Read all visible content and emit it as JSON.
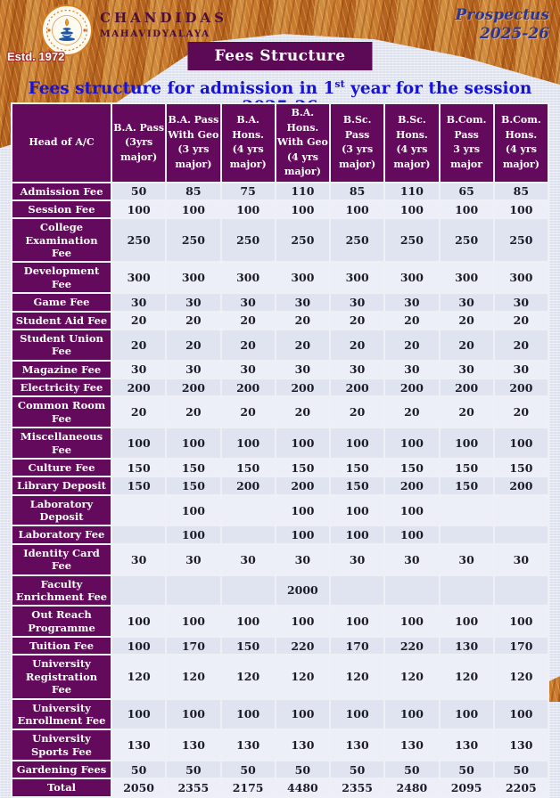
{
  "header": {
    "college_name": "CHANDIDAS",
    "college_subname": "MAHAVIDYALAYA",
    "estd": "Estd. 1972",
    "prospectus_line1": "Prospectus",
    "prospectus_line2": "2025-26",
    "banner_title": "Fees Structure",
    "page_title_prefix": "Fees structure for admission in 1",
    "page_title_sup": "st",
    "page_title_suffix": " year for the session 2025-26"
  },
  "colors": {
    "purple": "#640a5c",
    "title_blue": "#1713d4",
    "prospectus_navy": "#2a3694",
    "maroon": "#4c1038",
    "row_dark": "#dfe4f0",
    "row_light": "#eceff7",
    "orange_texture": "#c2742a"
  },
  "icons": {
    "logo": "college-emblem-lamp"
  },
  "table": {
    "head_col": "Head of A/C",
    "columns": [
      "B.A. Pass\n(3yrs major)",
      "B.A. Pass\nWith Geo\n(3 yrs major)",
      "B.A. Hons.\n(4 yrs major)",
      "B.A. Hons.\nWith Geo\n(4 yrs major)",
      "B.Sc. Pass\n(3 yrs major)",
      "B.Sc. Hons.\n(4 yrs major)",
      "B.Com. Pass\n3 yrs major",
      "B.Com. Hons.\n(4 yrs major)"
    ],
    "rows": [
      {
        "label": "Admission Fee",
        "values": [
          "50",
          "85",
          "75",
          "110",
          "85",
          "110",
          "65",
          "85"
        ]
      },
      {
        "label": "Session Fee",
        "values": [
          "100",
          "100",
          "100",
          "100",
          "100",
          "100",
          "100",
          "100"
        ]
      },
      {
        "label": "College Examination Fee",
        "values": [
          "250",
          "250",
          "250",
          "250",
          "250",
          "250",
          "250",
          "250"
        ]
      },
      {
        "label": "Development Fee",
        "values": [
          "300",
          "300",
          "300",
          "300",
          "300",
          "300",
          "300",
          "300"
        ]
      },
      {
        "label": "Game Fee",
        "values": [
          "30",
          "30",
          "30",
          "30",
          "30",
          "30",
          "30",
          "30"
        ]
      },
      {
        "label": "Student Aid Fee",
        "values": [
          "20",
          "20",
          "20",
          "20",
          "20",
          "20",
          "20",
          "20"
        ]
      },
      {
        "label": "Student Union Fee",
        "values": [
          "20",
          "20",
          "20",
          "20",
          "20",
          "20",
          "20",
          "20"
        ]
      },
      {
        "label": "Magazine Fee",
        "values": [
          "30",
          "30",
          "30",
          "30",
          "30",
          "30",
          "30",
          "30"
        ]
      },
      {
        "label": "Electricity Fee",
        "values": [
          "200",
          "200",
          "200",
          "200",
          "200",
          "200",
          "200",
          "200"
        ]
      },
      {
        "label": "Common Room Fee",
        "values": [
          "20",
          "20",
          "20",
          "20",
          "20",
          "20",
          "20",
          "20"
        ]
      },
      {
        "label": "Miscellaneous Fee",
        "values": [
          "100",
          "100",
          "100",
          "100",
          "100",
          "100",
          "100",
          "100"
        ]
      },
      {
        "label": "Culture Fee",
        "values": [
          "150",
          "150",
          "150",
          "150",
          "150",
          "150",
          "150",
          "150"
        ]
      },
      {
        "label": "Library Deposit",
        "values": [
          "150",
          "150",
          "200",
          "200",
          "150",
          "200",
          "150",
          "200"
        ]
      },
      {
        "label": "Laboratory Deposit",
        "values": [
          "",
          "100",
          "",
          "100",
          "100",
          "100",
          "",
          ""
        ]
      },
      {
        "label": "Laboratory Fee",
        "values": [
          "",
          "100",
          "",
          "100",
          "100",
          "100",
          "",
          ""
        ]
      },
      {
        "label": "Identity Card Fee",
        "values": [
          "30",
          "30",
          "30",
          "30",
          "30",
          "30",
          "30",
          "30"
        ]
      },
      {
        "label": "Faculty Enrichment Fee",
        "values": [
          "",
          "",
          "",
          "2000",
          "",
          "",
          "",
          ""
        ]
      },
      {
        "label": "Out Reach Programme",
        "values": [
          "100",
          "100",
          "100",
          "100",
          "100",
          "100",
          "100",
          "100"
        ]
      },
      {
        "label": "Tuition Fee",
        "values": [
          "100",
          "170",
          "150",
          "220",
          "170",
          "220",
          "130",
          "170"
        ]
      },
      {
        "label": "University Registration Fee",
        "values": [
          "120",
          "120",
          "120",
          "120",
          "120",
          "120",
          "120",
          "120"
        ]
      },
      {
        "label": "University Enrollment Fee",
        "values": [
          "100",
          "100",
          "100",
          "100",
          "100",
          "100",
          "100",
          "100"
        ]
      },
      {
        "label": "University Sports Fee",
        "values": [
          "130",
          "130",
          "130",
          "130",
          "130",
          "130",
          "130",
          "130"
        ]
      },
      {
        "label": "Gardening Fees",
        "values": [
          "50",
          "50",
          "50",
          "50",
          "50",
          "50",
          "50",
          "50"
        ]
      },
      {
        "label": "Total",
        "is_total": true,
        "values": [
          "2050",
          "2355",
          "2175",
          "4480",
          "2355",
          "2480",
          "2095",
          "2205"
        ]
      }
    ]
  }
}
